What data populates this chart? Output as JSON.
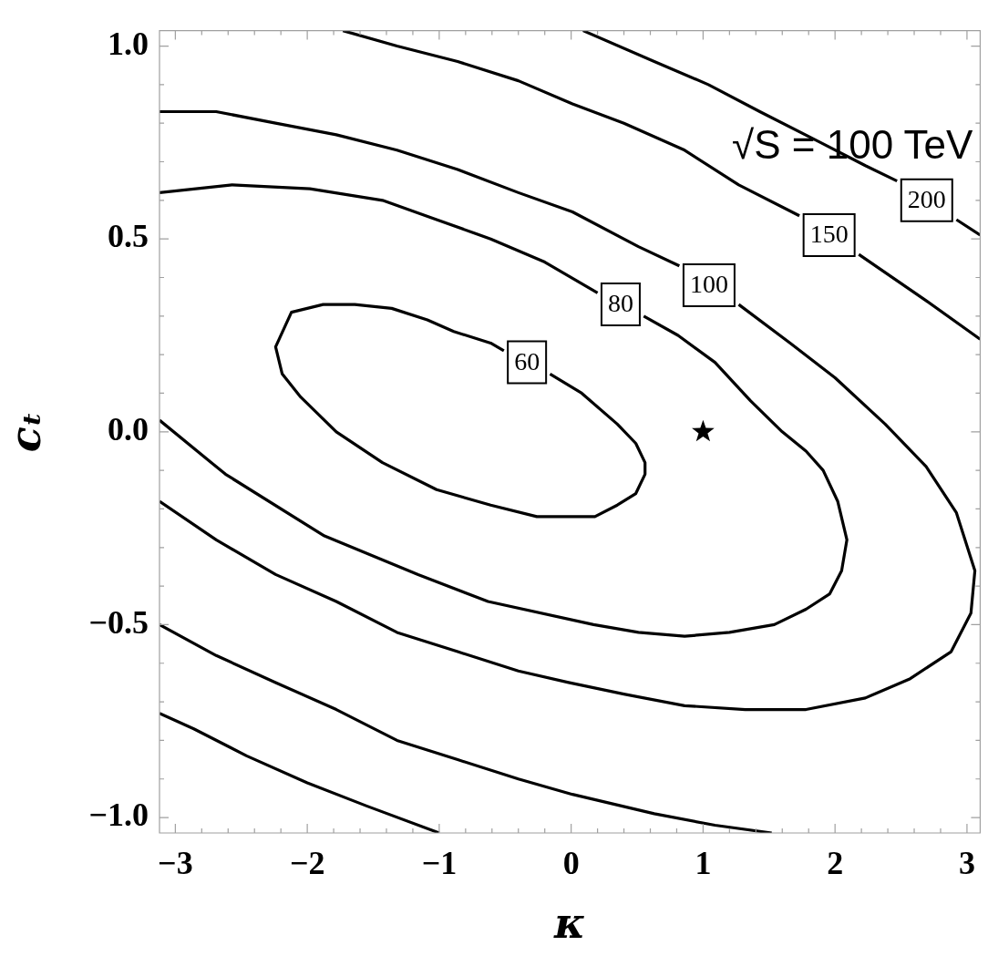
{
  "chart_data": {
    "type": "line",
    "xlabel": "κ",
    "ylabel": "cₜ",
    "xlim": [
      -3.12,
      3.1
    ],
    "ylim": [
      -1.04,
      1.04
    ],
    "xticks": [
      {
        "value": -3,
        "label": "−3"
      },
      {
        "value": -2.8,
        "label": null
      },
      {
        "value": -2.6,
        "label": null
      },
      {
        "value": -2.4,
        "label": null
      },
      {
        "value": -2.2,
        "label": null
      },
      {
        "value": -2,
        "label": "−2"
      },
      {
        "value": -1.8,
        "label": null
      },
      {
        "value": -1.6,
        "label": null
      },
      {
        "value": -1.4,
        "label": null
      },
      {
        "value": -1.2,
        "label": null
      },
      {
        "value": -1,
        "label": "−1"
      },
      {
        "value": -0.8,
        "label": null
      },
      {
        "value": -0.6,
        "label": null
      },
      {
        "value": -0.4,
        "label": null
      },
      {
        "value": -0.2,
        "label": null
      },
      0,
      {
        "value": 0.2,
        "label": null
      },
      {
        "value": 0.4,
        "label": null
      },
      {
        "value": 0.6,
        "label": null
      },
      {
        "value": 0.8,
        "label": null
      },
      1,
      {
        "value": 1.2,
        "label": null
      },
      {
        "value": 1.4,
        "label": null
      },
      {
        "value": 1.6,
        "label": null
      },
      {
        "value": 1.8,
        "label": null
      },
      2,
      {
        "value": 2.2,
        "label": null
      },
      {
        "value": 2.4,
        "label": null
      },
      {
        "value": 2.6,
        "label": null
      },
      {
        "value": 2.8,
        "label": null
      },
      3
    ],
    "yticks": [
      {
        "value": -1,
        "label": "−1.0"
      },
      {
        "value": -0.9,
        "label": null
      },
      {
        "value": -0.8,
        "label": null
      },
      {
        "value": -0.7,
        "label": null
      },
      {
        "value": -0.6,
        "label": null
      },
      {
        "value": -0.5,
        "label": "−0.5"
      },
      {
        "value": -0.4,
        "label": null
      },
      {
        "value": -0.3,
        "label": null
      },
      {
        "value": -0.2,
        "label": null
      },
      {
        "value": -0.1,
        "label": null
      },
      {
        "value": 0,
        "label": "0.0"
      },
      {
        "value": 0.1,
        "label": null
      },
      {
        "value": 0.2,
        "label": null
      },
      {
        "value": 0.3,
        "label": null
      },
      {
        "value": 0.4,
        "label": null
      },
      {
        "value": 0.5,
        "label": "0.5"
      },
      {
        "value": 0.6,
        "label": null
      },
      {
        "value": 0.7,
        "label": null
      },
      {
        "value": 0.8,
        "label": null
      },
      {
        "value": 0.9,
        "label": null
      },
      {
        "value": 1,
        "label": "1.0"
      }
    ],
    "line_style": "solid",
    "series": [
      {
        "name": "60",
        "color": "#000000",
        "x": [
          -0.51,
          -0.33,
          -0.16,
          0.08,
          0.35,
          0.49,
          0.56,
          0.56,
          0.49,
          0.35,
          0.18,
          0.0,
          -0.26,
          -0.61,
          -1.02,
          -1.43,
          -1.78,
          -2.05,
          -2.19,
          -2.24,
          -2.12,
          -1.88,
          -1.64,
          -1.36,
          -1.09,
          -0.89,
          -0.61,
          -0.51
        ],
        "values": [
          0.21,
          null,
          0.15,
          0.1,
          0.02,
          -0.03,
          -0.08,
          -0.11,
          -0.16,
          -0.19,
          -0.22,
          -0.22,
          -0.22,
          -0.19,
          -0.15,
          -0.08,
          0.0,
          0.09,
          0.15,
          0.22,
          0.31,
          0.33,
          0.33,
          0.32,
          0.29,
          0.26,
          0.23,
          0.21
        ]
      },
      {
        "name": "80",
        "color": "#000000",
        "x": [
          -3.12,
          -2.57,
          -1.98,
          -1.43,
          -1.02,
          -0.61,
          -0.2,
          0.2,
          0.37,
          0.55,
          0.81,
          1.09,
          1.36,
          1.6,
          1.78,
          1.91,
          2.02,
          2.09,
          2.05,
          1.96,
          1.78,
          1.54,
          1.2,
          0.86,
          0.51,
          0.17,
          -0.63,
          -1.16,
          -1.87,
          -2.62,
          -3.12
        ],
        "values": [
          0.62,
          0.64,
          0.63,
          0.6,
          0.55,
          0.5,
          0.44,
          0.36,
          null,
          0.3,
          0.25,
          0.18,
          0.08,
          0.0,
          -0.05,
          -0.1,
          -0.18,
          -0.28,
          -0.36,
          -0.42,
          -0.46,
          -0.5,
          -0.52,
          -0.53,
          -0.52,
          -0.5,
          -0.44,
          -0.37,
          -0.27,
          -0.11,
          0.03
        ]
      },
      {
        "name": "100",
        "color": "#000000",
        "x": [
          -3.12,
          -2.69,
          -2.24,
          -1.78,
          -1.32,
          -0.86,
          -0.4,
          0.01,
          0.51,
          0.82,
          1.04,
          1.27,
          1.66,
          2.0,
          2.38,
          2.69,
          2.92,
          3.06,
          3.03,
          2.88,
          2.57,
          2.23,
          1.78,
          1.32,
          0.86,
          0.4,
          -0.02,
          -0.4,
          -0.86,
          -1.32,
          -1.78,
          -2.24,
          -2.69,
          -3.12
        ],
        "values": [
          0.83,
          0.83,
          0.8,
          0.77,
          0.73,
          0.68,
          0.62,
          0.57,
          0.48,
          0.43,
          null,
          0.33,
          0.23,
          0.14,
          0.02,
          -0.09,
          -0.21,
          -0.36,
          -0.47,
          -0.57,
          -0.64,
          -0.69,
          -0.72,
          -0.72,
          -0.71,
          -0.68,
          -0.65,
          -0.62,
          -0.57,
          -0.52,
          -0.44,
          -0.37,
          -0.28,
          -0.18
        ]
      },
      {
        "name": "150",
        "color": "#000000",
        "x": [
          -1.73,
          -1.32,
          -0.86,
          -0.4,
          0.01,
          0.4,
          0.86,
          1.27,
          1.73,
          1.95,
          2.18,
          2.69,
          3.1
        ],
        "values": [
          1.04,
          1.0,
          0.96,
          0.91,
          0.85,
          0.8,
          0.73,
          0.64,
          0.56,
          null,
          0.46,
          0.34,
          0.24
        ]
      },
      {
        "color": "#000000",
        "x": [
          -3.12,
          -2.69,
          -2.24,
          -1.78,
          -1.32,
          -0.86,
          -0.4,
          0.01,
          0.63,
          1.09,
          1.52
        ],
        "values": [
          -0.5,
          -0.58,
          -0.65,
          -0.72,
          -0.8,
          -0.85,
          -0.9,
          -0.94,
          -0.99,
          -1.02,
          -1.04
        ]
      },
      {
        "name": "200",
        "color": "#000000",
        "x": [
          0.09,
          0.63,
          1.04,
          1.43,
          1.89,
          2.23,
          2.47,
          2.69,
          2.92,
          3.1
        ],
        "values": [
          1.04,
          0.96,
          0.9,
          0.83,
          0.75,
          0.69,
          0.65,
          null,
          0.55,
          0.51
        ]
      },
      {
        "color": "#000000",
        "x": [
          -3.12,
          -2.86,
          -2.46,
          -2.0,
          -1.55,
          -1.0
        ],
        "values": [
          -0.73,
          -0.77,
          -0.84,
          -0.91,
          -0.97,
          -1.04
        ]
      },
      {
        "type": "scatter",
        "marker": "star",
        "color": "#000000",
        "x": [
          1
        ],
        "values": [
          0
        ]
      }
    ],
    "annotations": [
      "√S = 100 TeV"
    ]
  }
}
